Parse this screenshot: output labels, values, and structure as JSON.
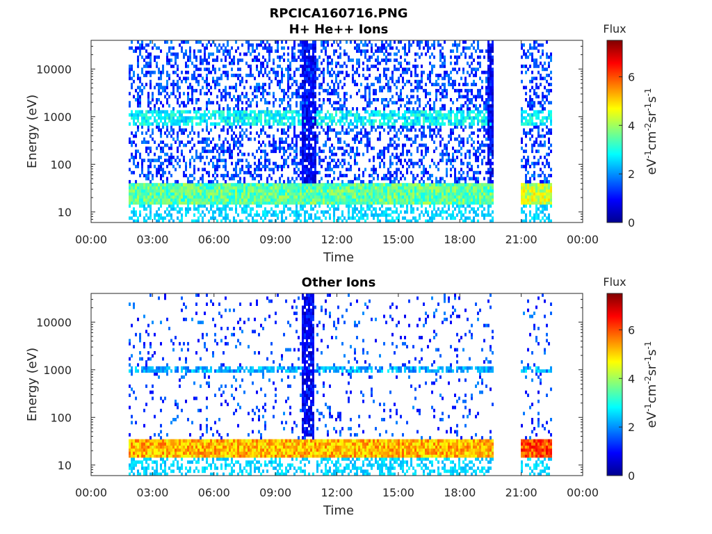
{
  "figure_title": "RPCICA160716.PNG",
  "chart_data": [
    {
      "type": "heatmap",
      "title": "H+ He++ Ions",
      "xlabel": "Time",
      "ylabel": "Energy (eV)",
      "yscale": "log",
      "ylim": [
        6,
        40000
      ],
      "xlim": [
        "00:00",
        "24:00"
      ],
      "x_ticks": [
        "00:00",
        "03:00",
        "06:00",
        "09:00",
        "12:00",
        "15:00",
        "18:00",
        "21:00",
        "00:00"
      ],
      "y_ticks": [
        "10",
        "100",
        "1000",
        "10000"
      ],
      "y_tick_values": [
        10,
        100,
        1000,
        10000
      ],
      "colorbar": {
        "label": "Flux",
        "units": "eV-1cm-2sr-1s-1",
        "range": [
          0,
          7.5
        ],
        "ticks": [
          "0",
          "2",
          "4",
          "6"
        ],
        "tick_values": [
          0,
          2,
          4,
          6
        ],
        "colormap": "jet"
      },
      "data_coverage_hours": [
        [
          1.8,
          19.6
        ],
        [
          20.9,
          22.5
        ]
      ],
      "features": [
        {
          "desc": "low energy band",
          "energy_range": [
            15,
            40
          ],
          "flux": 3.5
        },
        {
          "desc": "mid band",
          "energy_range": [
            700,
            1300
          ],
          "flux": 2.8
        },
        {
          "desc": "broadband burst",
          "hours": [
            10.2,
            10.9
          ],
          "flux": 1.5
        },
        {
          "desc": "broadband burst",
          "hours": [
            19.3,
            19.6
          ],
          "flux": 1.2
        }
      ]
    },
    {
      "type": "heatmap",
      "title": "Other Ions",
      "xlabel": "Time",
      "ylabel": "Energy (eV)",
      "yscale": "log",
      "ylim": [
        6,
        40000
      ],
      "xlim": [
        "00:00",
        "24:00"
      ],
      "x_ticks": [
        "00:00",
        "03:00",
        "06:00",
        "09:00",
        "12:00",
        "15:00",
        "18:00",
        "21:00",
        "00:00"
      ],
      "y_ticks": [
        "10",
        "100",
        "1000",
        "10000"
      ],
      "y_tick_values": [
        10,
        100,
        1000,
        10000
      ],
      "colorbar": {
        "label": "Flux",
        "units": "eV-1cm-2sr-1s-1",
        "range": [
          0,
          7.5
        ],
        "ticks": [
          "0",
          "2",
          "4",
          "6"
        ],
        "tick_values": [
          0,
          2,
          4,
          6
        ],
        "colormap": "jet"
      },
      "data_coverage_hours": [
        [
          1.8,
          19.6
        ],
        [
          20.9,
          22.5
        ]
      ],
      "features": [
        {
          "desc": "low energy band",
          "energy_range": [
            15,
            35
          ],
          "flux": 5.2
        },
        {
          "desc": "mid band",
          "energy_range": [
            850,
            1150
          ],
          "flux": 2.2
        },
        {
          "desc": "broadband burst",
          "hours": [
            10.2,
            10.8
          ],
          "flux": 1.0
        }
      ]
    }
  ]
}
